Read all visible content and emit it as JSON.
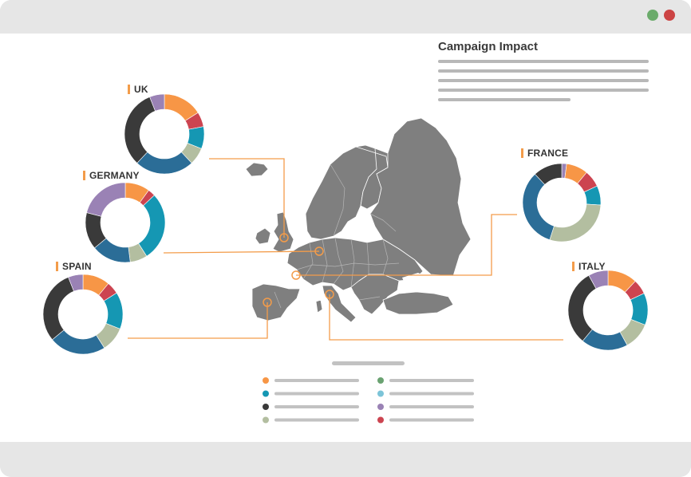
{
  "window": {
    "close_color": "#cc4444",
    "min_color": "#6bab6b"
  },
  "header": {
    "title": "Campaign Impact"
  },
  "colors": {
    "orange": "#f79646",
    "teal": "#1597b3",
    "dark": "#3a3a3a",
    "sage": "#b3bea0",
    "green": "#6aa271",
    "lightblue": "#7cc4d8",
    "purple": "#9a82b5",
    "red": "#cc4450",
    "blue": "#2b6d97",
    "connector": "#f39c4a",
    "map": "#7f7f7f"
  },
  "chart_data": [
    {
      "type": "pie",
      "country": "UK",
      "slices": [
        {
          "color": "orange",
          "value": 16
        },
        {
          "color": "red",
          "value": 6
        },
        {
          "color": "teal",
          "value": 9
        },
        {
          "color": "sage",
          "value": 7
        },
        {
          "color": "blue",
          "value": 24
        },
        {
          "color": "dark",
          "value": 32
        },
        {
          "color": "purple",
          "value": 6
        }
      ]
    },
    {
      "type": "pie",
      "country": "GERMANY",
      "slices": [
        {
          "color": "orange",
          "value": 10
        },
        {
          "color": "red",
          "value": 3
        },
        {
          "color": "teal",
          "value": 28
        },
        {
          "color": "sage",
          "value": 7
        },
        {
          "color": "blue",
          "value": 16
        },
        {
          "color": "dark",
          "value": 15
        },
        {
          "color": "purple",
          "value": 21
        }
      ]
    },
    {
      "type": "pie",
      "country": "SPAIN",
      "slices": [
        {
          "color": "orange",
          "value": 11
        },
        {
          "color": "red",
          "value": 5
        },
        {
          "color": "teal",
          "value": 15
        },
        {
          "color": "sage",
          "value": 10
        },
        {
          "color": "blue",
          "value": 23
        },
        {
          "color": "dark",
          "value": 30
        },
        {
          "color": "purple",
          "value": 6
        }
      ]
    },
    {
      "type": "pie",
      "country": "FRANCE",
      "slices": [
        {
          "color": "purple",
          "value": 2
        },
        {
          "color": "orange",
          "value": 9
        },
        {
          "color": "red",
          "value": 7
        },
        {
          "color": "teal",
          "value": 8
        },
        {
          "color": "sage",
          "value": 29
        },
        {
          "color": "blue",
          "value": 33
        },
        {
          "color": "dark",
          "value": 12
        }
      ]
    },
    {
      "type": "pie",
      "country": "ITALY",
      "slices": [
        {
          "color": "orange",
          "value": 12
        },
        {
          "color": "red",
          "value": 6
        },
        {
          "color": "teal",
          "value": 13
        },
        {
          "color": "sage",
          "value": 11
        },
        {
          "color": "blue",
          "value": 19
        },
        {
          "color": "dark",
          "value": 31
        },
        {
          "color": "purple",
          "value": 8
        }
      ]
    }
  ],
  "legend": [
    {
      "color": "orange"
    },
    {
      "color": "teal"
    },
    {
      "color": "dark"
    },
    {
      "color": "sage"
    },
    {
      "color": "green"
    },
    {
      "color": "lightblue"
    },
    {
      "color": "purple"
    },
    {
      "color": "red"
    }
  ]
}
